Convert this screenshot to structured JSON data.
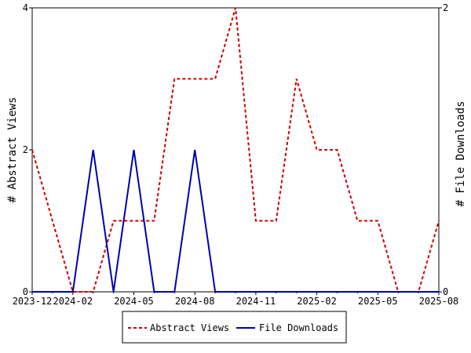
{
  "chart_data": {
    "type": "line",
    "x": [
      "2023-12",
      "2024-01",
      "2024-02",
      "2024-03",
      "2024-04",
      "2024-05",
      "2024-06",
      "2024-07",
      "2024-08",
      "2024-09",
      "2024-10",
      "2024-11",
      "2024-12",
      "2025-01",
      "2025-02",
      "2025-03",
      "2025-04",
      "2025-05",
      "2025-06",
      "2025-07",
      "2025-08"
    ],
    "xticks": [
      "2023-12",
      "2024-02",
      "2024-05",
      "2024-08",
      "2024-11",
      "2025-02",
      "2025-05",
      "2025-08"
    ],
    "left_axis": {
      "label": "# Abstract Views",
      "ticks": [
        "0",
        "2",
        "4"
      ],
      "ylim": [
        0,
        4
      ]
    },
    "right_axis": {
      "label": "# File Downloads",
      "ticks": [
        "0",
        "2"
      ],
      "ylim": [
        0,
        2
      ]
    },
    "series": [
      {
        "name": "Abstract Views",
        "axis": "left",
        "color": "#cc0000",
        "dashed": true,
        "values": [
          2,
          1,
          0,
          0,
          1,
          1,
          1,
          3,
          3,
          3,
          4,
          1,
          1,
          3,
          2,
          2,
          1,
          1,
          0,
          0,
          1
        ]
      },
      {
        "name": "File Downloads",
        "axis": "right",
        "color": "#0000aa",
        "dashed": false,
        "values": [
          0,
          0,
          0,
          1,
          0,
          1,
          0,
          0,
          1,
          0,
          0,
          0,
          0,
          0,
          0,
          0,
          0,
          0,
          0,
          0,
          0
        ]
      }
    ],
    "legend": "bottom"
  }
}
